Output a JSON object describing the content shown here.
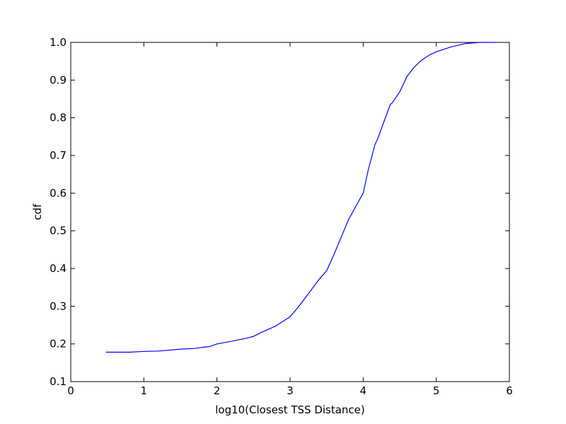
{
  "chart_data": {
    "type": "line",
    "x_label": "log10(Closest TSS Distance)",
    "y_label": "cdf",
    "series": [
      {
        "name": "cdf",
        "color": "#0000ff",
        "x": [
          0.48,
          0.8,
          1.0,
          1.2,
          1.5,
          1.7,
          1.8,
          1.9,
          2.0,
          2.2,
          2.4,
          2.5,
          2.6,
          2.8,
          3.0,
          3.1,
          3.2,
          3.4,
          3.5,
          3.6,
          3.8,
          3.9,
          4.0,
          4.07,
          4.16,
          4.2,
          4.37,
          4.4,
          4.5,
          4.6,
          4.7,
          4.8,
          4.9,
          5.0,
          5.2,
          5.4,
          5.6,
          5.8
        ],
        "values": [
          0.178,
          0.178,
          0.18,
          0.181,
          0.186,
          0.188,
          0.191,
          0.193,
          0.2,
          0.207,
          0.215,
          0.22,
          0.23,
          0.247,
          0.272,
          0.295,
          0.32,
          0.372,
          0.394,
          0.437,
          0.53,
          0.565,
          0.6,
          0.662,
          0.728,
          0.745,
          0.835,
          0.84,
          0.869,
          0.91,
          0.935,
          0.953,
          0.966,
          0.975,
          0.988,
          0.997,
          1.0,
          1.0
        ]
      }
    ],
    "xlim": [
      0,
      6
    ],
    "xticks": [
      0,
      1,
      2,
      3,
      4,
      5,
      6
    ],
    "ylim": [
      0.1,
      1.0
    ],
    "yticks": [
      0.1,
      0.2,
      0.3,
      0.4,
      0.5,
      0.6,
      0.7,
      0.8,
      0.9,
      {
        "value": 1.0,
        "label": "1.0"
      }
    ],
    "grid": false
  }
}
